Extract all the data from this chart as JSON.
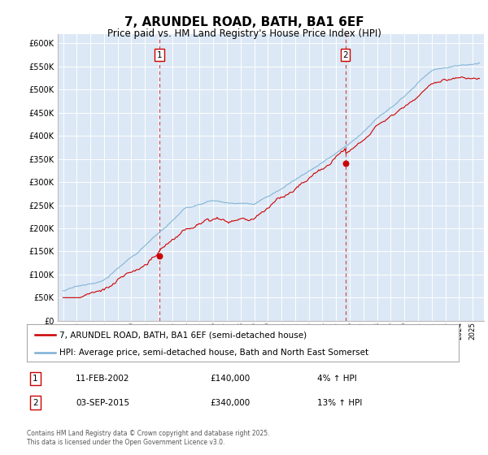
{
  "title": "7, ARUNDEL ROAD, BATH, BA1 6EF",
  "subtitle": "Price paid vs. HM Land Registry's House Price Index (HPI)",
  "legend_line1": "7, ARUNDEL ROAD, BATH, BA1 6EF (semi-detached house)",
  "legend_line2": "HPI: Average price, semi-detached house, Bath and North East Somerset",
  "annotation1_date": "11-FEB-2002",
  "annotation1_price": "£140,000",
  "annotation1_hpi": "4% ↑ HPI",
  "annotation2_date": "03-SEP-2015",
  "annotation2_price": "£340,000",
  "annotation2_hpi": "13% ↑ HPI",
  "footer": "Contains HM Land Registry data © Crown copyright and database right 2025.\nThis data is licensed under the Open Government Licence v3.0.",
  "price_color": "#cc0000",
  "hpi_color": "#7ab0d4",
  "annotation_color": "#cc0000",
  "plot_bg_color": "#dce8f5",
  "ylim": [
    0,
    620000
  ],
  "yticks": [
    0,
    50000,
    100000,
    150000,
    200000,
    250000,
    300000,
    350000,
    400000,
    450000,
    500000,
    550000,
    600000
  ],
  "sale1_year": 2002.08,
  "sale1_price": 140000,
  "sale2_year": 2015.67,
  "sale2_price": 340000
}
